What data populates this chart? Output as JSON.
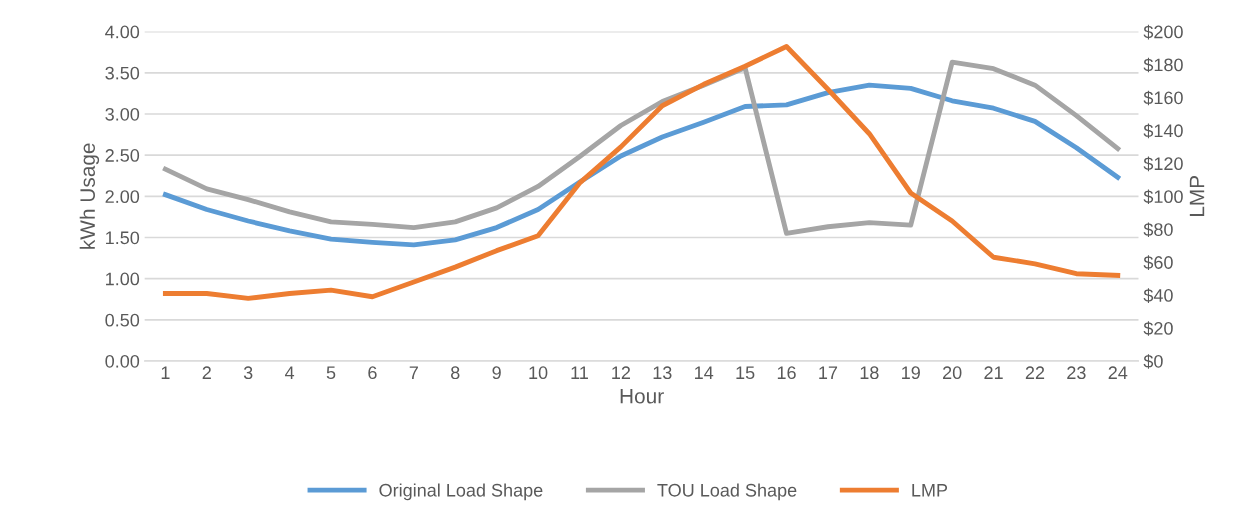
{
  "chart_data": {
    "type": "line",
    "xlabel": "Hour",
    "ylabel": "kWh Usage",
    "y2label": "LMP",
    "categories": [
      "1",
      "2",
      "3",
      "4",
      "5",
      "6",
      "7",
      "8",
      "9",
      "10",
      "11",
      "12",
      "13",
      "14",
      "15",
      "16",
      "17",
      "18",
      "19",
      "20",
      "21",
      "22",
      "23",
      "24"
    ],
    "series": [
      {
        "name": "Original Load Shape",
        "color": "#5b9bd5",
        "values": [
          2.02,
          1.84,
          1.7,
          1.58,
          1.48,
          1.44,
          1.41,
          1.47,
          1.62,
          1.84,
          2.17,
          2.49,
          2.72,
          2.9,
          3.09,
          3.11,
          3.26,
          3.35,
          3.31,
          3.16,
          3.07,
          2.91,
          2.59,
          2.23
        ]
      },
      {
        "name": "TOU Load Shape",
        "color": "#a5a5a5",
        "values": [
          2.33,
          2.09,
          1.96,
          1.81,
          1.69,
          1.66,
          1.62,
          1.69,
          1.86,
          2.12,
          2.48,
          2.86,
          3.15,
          3.35,
          3.56,
          1.55,
          1.63,
          1.68,
          1.65,
          3.63,
          3.55,
          3.35,
          2.98,
          2.58
        ]
      },
      {
        "name": "LMP",
        "color": "#ed7d31",
        "axis": "y2",
        "values": [
          41,
          41,
          38,
          41,
          43,
          39,
          48,
          57,
          67,
          76,
          108,
          130,
          155,
          168,
          179,
          191,
          165,
          138,
          102,
          85,
          63,
          59,
          53,
          52
        ]
      }
    ],
    "ylim": [
      0,
      4
    ],
    "yticks": [
      {
        "value": 0,
        "label": "0.00"
      },
      {
        "value": 0.5,
        "label": "0.50"
      },
      {
        "value": 1,
        "label": "1.00"
      },
      {
        "value": 1.5,
        "label": "1.50"
      },
      {
        "value": 2,
        "label": "2.00"
      },
      {
        "value": 2.5,
        "label": "2.50"
      },
      {
        "value": 3,
        "label": "3.00"
      },
      {
        "value": 3.5,
        "label": "3.50"
      },
      {
        "value": 4,
        "label": "4.00"
      }
    ],
    "y2lim": [
      0,
      200
    ],
    "y2ticks": [
      {
        "value": 0,
        "label": "$0"
      },
      {
        "value": 20,
        "label": "$20"
      },
      {
        "value": 40,
        "label": "$40"
      },
      {
        "value": 60,
        "label": "$60"
      },
      {
        "value": 80,
        "label": "$80"
      },
      {
        "value": 100,
        "label": "$100"
      },
      {
        "value": 120,
        "label": "$120"
      },
      {
        "value": 140,
        "label": "$140"
      },
      {
        "value": 160,
        "label": "$160"
      },
      {
        "value": 180,
        "label": "$180"
      },
      {
        "value": 200,
        "label": "$200"
      }
    ],
    "grid": "y",
    "legend": "bottom",
    "line_style": "solid",
    "marker": "none"
  }
}
